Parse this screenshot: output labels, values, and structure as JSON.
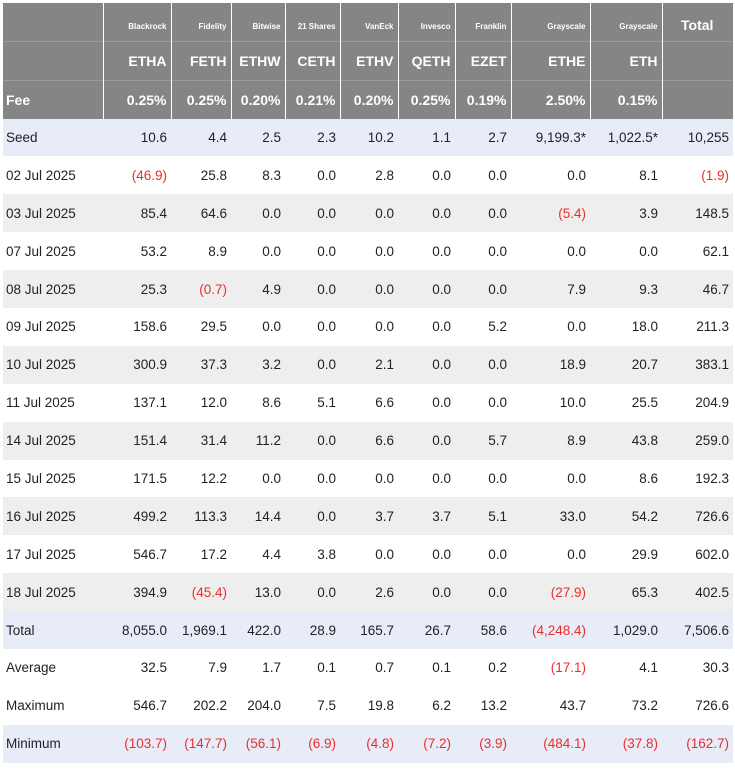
{
  "providers": [
    "Blackrock",
    "Fidelity",
    "Bitwise",
    "21 Shares",
    "VanEck",
    "Invesco",
    "Franklin",
    "Grayscale",
    "Grayscale"
  ],
  "total_header": "Total",
  "tickers": [
    "ETHA",
    "FETH",
    "ETHW",
    "CETH",
    "ETHV",
    "QETH",
    "EZET",
    "ETHE",
    "ETH"
  ],
  "fee_label": "Fee",
  "fees": [
    "0.25%",
    "0.25%",
    "0.20%",
    "0.21%",
    "0.20%",
    "0.25%",
    "0.19%",
    "2.50%",
    "0.15%"
  ],
  "negative_color": "#e8302a",
  "header_bg": "#858585",
  "rows": [
    {
      "label": "Seed",
      "style": "blue",
      "values": [
        "10.6",
        "4.4",
        "2.5",
        "2.3",
        "10.2",
        "1.1",
        "2.7",
        "9,199.3*",
        "1,022.5*",
        "10,255"
      ]
    },
    {
      "label": "02 Jul 2025",
      "style": "white",
      "values": [
        "(46.9)",
        "25.8",
        "8.3",
        "0.0",
        "2.8",
        "0.0",
        "0.0",
        "0.0",
        "8.1",
        "(1.9)"
      ]
    },
    {
      "label": "03 Jul 2025",
      "style": "shade",
      "values": [
        "85.4",
        "64.6",
        "0.0",
        "0.0",
        "0.0",
        "0.0",
        "0.0",
        "(5.4)",
        "3.9",
        "148.5"
      ]
    },
    {
      "label": "07 Jul 2025",
      "style": "white",
      "values": [
        "53.2",
        "8.9",
        "0.0",
        "0.0",
        "0.0",
        "0.0",
        "0.0",
        "0.0",
        "0.0",
        "62.1"
      ]
    },
    {
      "label": "08 Jul 2025",
      "style": "shade",
      "values": [
        "25.3",
        "(0.7)",
        "4.9",
        "0.0",
        "0.0",
        "0.0",
        "0.0",
        "7.9",
        "9.3",
        "46.7"
      ]
    },
    {
      "label": "09 Jul 2025",
      "style": "white",
      "values": [
        "158.6",
        "29.5",
        "0.0",
        "0.0",
        "0.0",
        "0.0",
        "5.2",
        "0.0",
        "18.0",
        "211.3"
      ]
    },
    {
      "label": "10 Jul 2025",
      "style": "shade",
      "values": [
        "300.9",
        "37.3",
        "3.2",
        "0.0",
        "2.1",
        "0.0",
        "0.0",
        "18.9",
        "20.7",
        "383.1"
      ]
    },
    {
      "label": "11 Jul 2025",
      "style": "white",
      "values": [
        "137.1",
        "12.0",
        "8.6",
        "5.1",
        "6.6",
        "0.0",
        "0.0",
        "10.0",
        "25.5",
        "204.9"
      ]
    },
    {
      "label": "14 Jul 2025",
      "style": "shade",
      "values": [
        "151.4",
        "31.4",
        "11.2",
        "0.0",
        "6.6",
        "0.0",
        "5.7",
        "8.9",
        "43.8",
        "259.0"
      ]
    },
    {
      "label": "15 Jul 2025",
      "style": "white",
      "values": [
        "171.5",
        "12.2",
        "0.0",
        "0.0",
        "0.0",
        "0.0",
        "0.0",
        "0.0",
        "8.6",
        "192.3"
      ]
    },
    {
      "label": "16 Jul 2025",
      "style": "shade",
      "values": [
        "499.2",
        "113.3",
        "14.4",
        "0.0",
        "3.7",
        "3.7",
        "5.1",
        "33.0",
        "54.2",
        "726.6"
      ]
    },
    {
      "label": "17 Jul 2025",
      "style": "white",
      "values": [
        "546.7",
        "17.2",
        "4.4",
        "3.8",
        "0.0",
        "0.0",
        "0.0",
        "0.0",
        "29.9",
        "602.0"
      ]
    },
    {
      "label": "18 Jul 2025",
      "style": "shade",
      "values": [
        "394.9",
        "(45.4)",
        "13.0",
        "0.0",
        "2.6",
        "0.0",
        "0.0",
        "(27.9)",
        "65.3",
        "402.5"
      ]
    },
    {
      "label": "Total",
      "style": "blue",
      "values": [
        "8,055.0",
        "1,969.1",
        "422.0",
        "28.9",
        "165.7",
        "26.7",
        "58.6",
        "(4,248.4)",
        "1,029.0",
        "7,506.6"
      ]
    },
    {
      "label": "Average",
      "style": "white",
      "values": [
        "32.5",
        "7.9",
        "1.7",
        "0.1",
        "0.7",
        "0.1",
        "0.2",
        "(17.1)",
        "4.1",
        "30.3"
      ]
    },
    {
      "label": "Maximum",
      "style": "white",
      "values": [
        "546.7",
        "202.2",
        "204.0",
        "7.5",
        "19.8",
        "6.2",
        "13.2",
        "43.7",
        "73.2",
        "726.6"
      ]
    },
    {
      "label": "Minimum",
      "style": "blue",
      "values": [
        "(103.7)",
        "(147.7)",
        "(56.1)",
        "(6.9)",
        "(4.8)",
        "(7.2)",
        "(3.9)",
        "(484.1)",
        "(37.8)",
        "(162.7)"
      ]
    }
  ]
}
